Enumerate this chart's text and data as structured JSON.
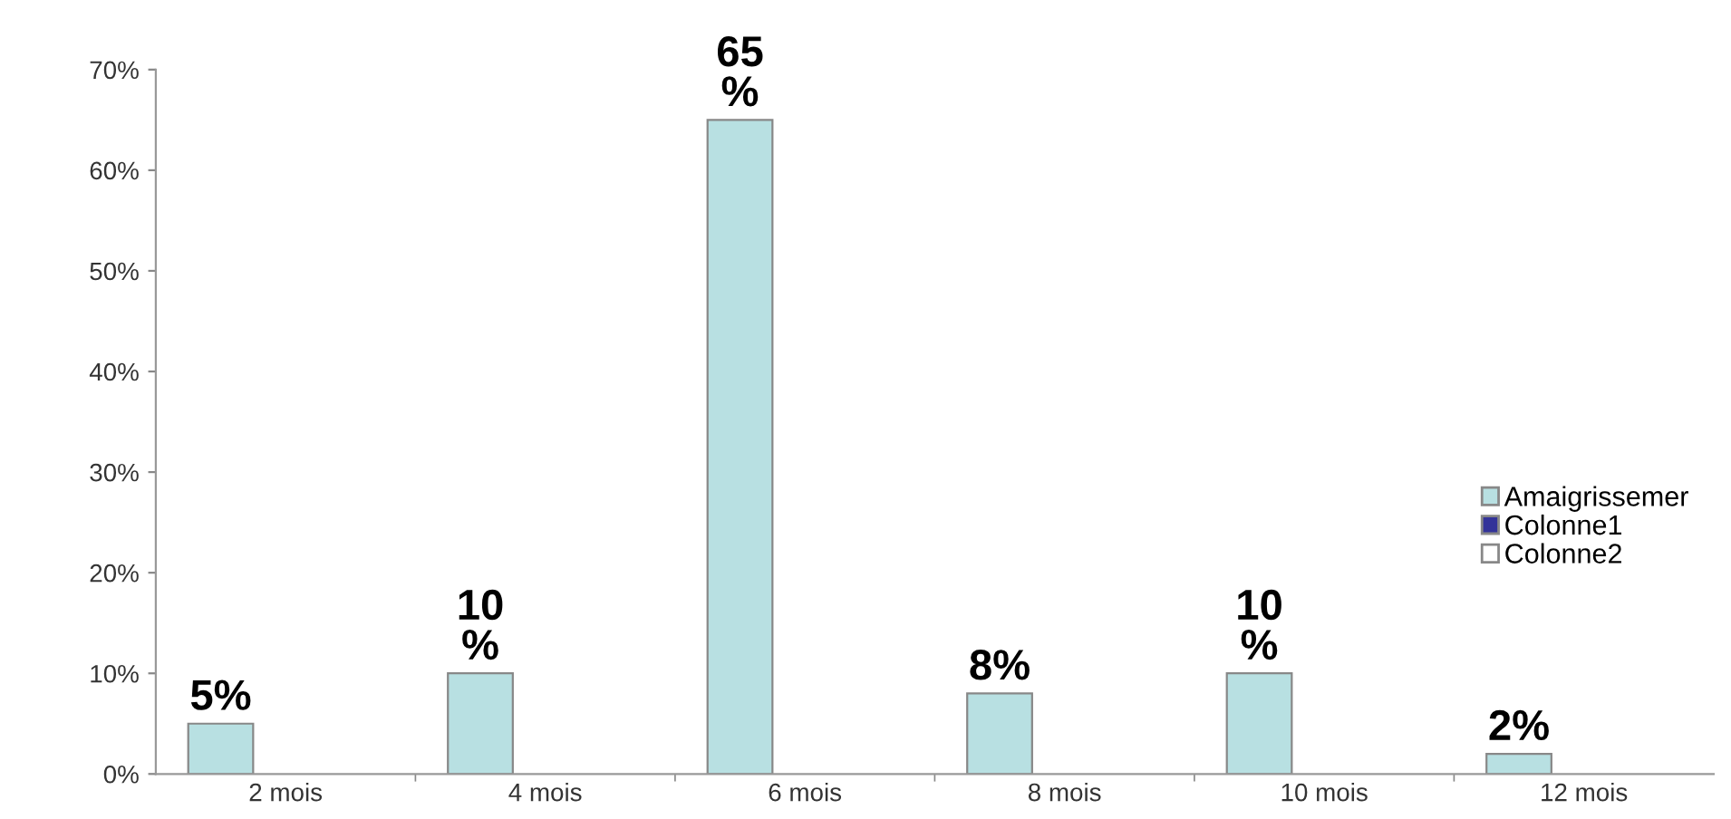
{
  "chart_data": {
    "type": "bar",
    "categories": [
      "2 mois",
      "4 mois",
      "6 mois",
      "8 mois",
      "10 mois",
      "12 mois"
    ],
    "series": [
      {
        "name": "Amaigrissemer",
        "color": "#b8e0e2",
        "values": [
          5,
          10,
          65,
          8,
          10,
          2
        ],
        "value_labels": [
          "5%",
          "10\n%",
          "65\n%",
          "8%",
          "10\n%",
          "2%"
        ]
      },
      {
        "name": "Colonne1",
        "color": "#333399",
        "values": [
          null,
          null,
          null,
          null,
          null,
          null
        ]
      },
      {
        "name": "Colonne2",
        "color": "#ffffff",
        "values": [
          null,
          null,
          null,
          null,
          null,
          null
        ]
      }
    ],
    "ylim": [
      0,
      70
    ],
    "yticks": [
      {
        "value": 0,
        "label": "0%"
      },
      {
        "value": 10,
        "label": "10%"
      },
      {
        "value": 20,
        "label": "20%"
      },
      {
        "value": 30,
        "label": "30%"
      },
      {
        "value": 40,
        "label": "40%"
      },
      {
        "value": 50,
        "label": "50%"
      },
      {
        "value": 60,
        "label": "60%"
      },
      {
        "value": 70,
        "label": "70%"
      }
    ],
    "grid": false,
    "legend": "right"
  }
}
